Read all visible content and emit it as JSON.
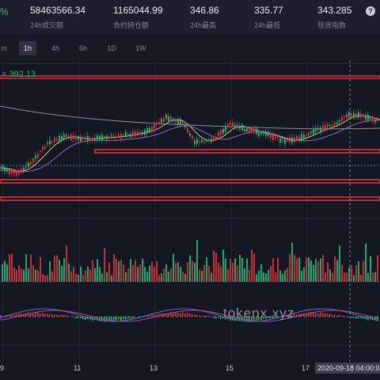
{
  "header": {
    "change_pct_fragment": "%",
    "stats": [
      {
        "value": "58463566.34",
        "label": "24h成交额"
      },
      {
        "value": "1165044.99",
        "label": "合约持仓额"
      },
      {
        "value": "346.86",
        "label": "24h最高"
      },
      {
        "value": "335.77",
        "label": "24h最低"
      },
      {
        "value": "343.285",
        "label": "现货指数"
      }
    ],
    "help_icon": "?"
  },
  "intervals": {
    "items": [
      "m",
      "1h",
      "4h",
      "6h",
      "1D",
      "1W"
    ],
    "active": "1h"
  },
  "chart": {
    "ma_label_prefix": "=",
    "ma_value": "392.13",
    "x_ticks": [
      "9",
      "11",
      "13",
      "15",
      "17"
    ],
    "crosshair_time": "2020-09-18 04:00:00",
    "watermark": "tokenx.xyz",
    "colors": {
      "up": "#2bbd7a",
      "down": "#e0353b",
      "ma_fast": "#d9c38a",
      "ma_slow": "#9a5fc9",
      "ma_long": "#8a8f9b",
      "hline": "#e0353b",
      "macd_dif": "#5a6fe0",
      "macd_dea": "#c0437a"
    }
  }
}
